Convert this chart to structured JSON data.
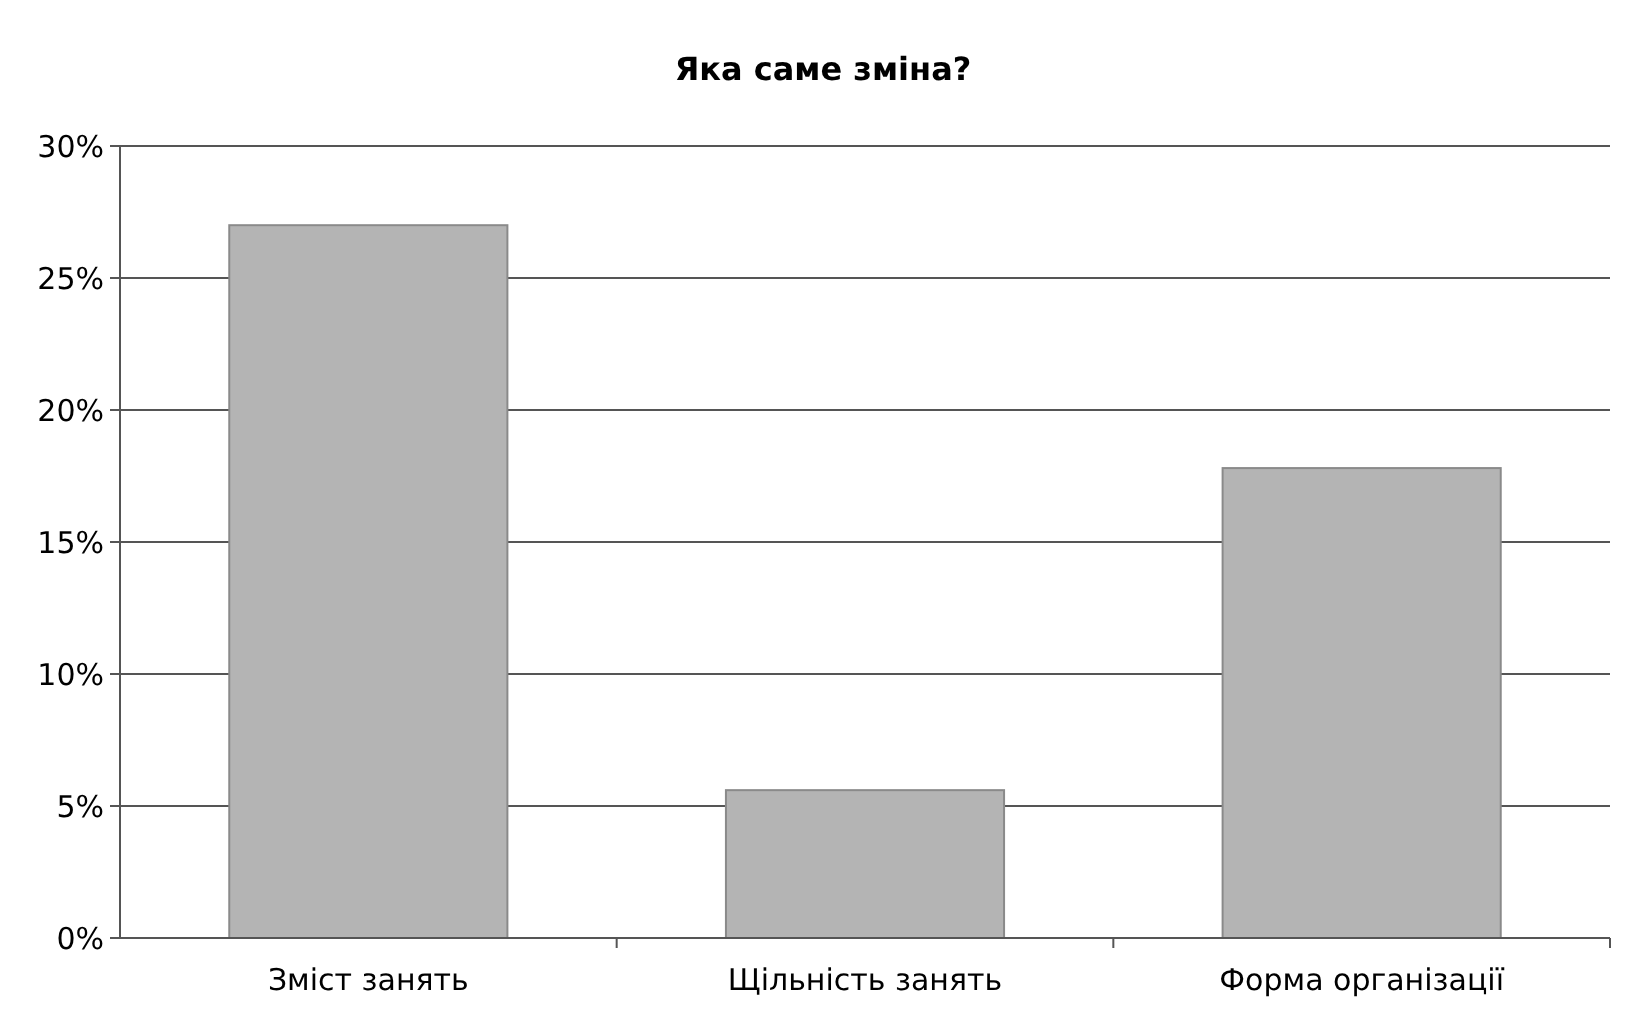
{
  "chart_data": {
    "type": "bar",
    "title": "Яка саме зміна?",
    "categories": [
      "Зміст занять",
      "Щільність занять",
      "Форма організації"
    ],
    "values": [
      27,
      5.6,
      17.8
    ],
    "color": "#b4b4b4",
    "ylim": [
      0,
      30
    ],
    "yticks": [
      {
        "value": 0,
        "label": "0%"
      },
      {
        "value": 5,
        "label": "5%"
      },
      {
        "value": 10,
        "label": "10%"
      },
      {
        "value": 15,
        "label": "15%"
      },
      {
        "value": 20,
        "label": "20%"
      },
      {
        "value": 25,
        "label": "25%"
      },
      {
        "value": 30,
        "label": "30%"
      }
    ],
    "grid": "y"
  }
}
